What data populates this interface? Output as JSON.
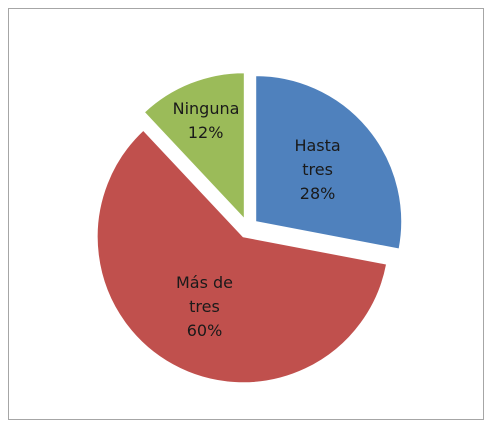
{
  "chart_data": {
    "type": "pie",
    "categories": [
      "Hasta tres",
      "Más de tres",
      "Ninguna"
    ],
    "values": [
      28,
      60,
      12
    ],
    "value_labels": [
      "28%",
      "60%",
      "12%"
    ],
    "colors": [
      "#4f81bd",
      "#c0504d",
      "#9bbb59"
    ],
    "exploded": true
  }
}
